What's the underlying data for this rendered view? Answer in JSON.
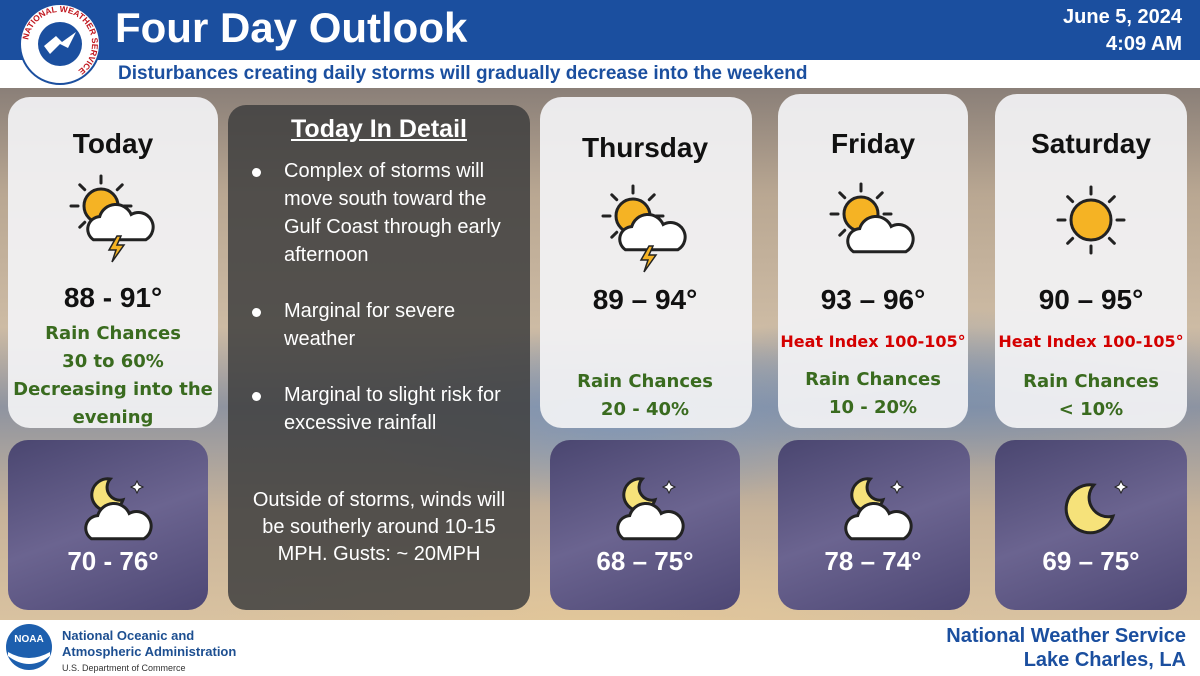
{
  "header": {
    "title": "Four Day Outlook",
    "date": "June 5, 2024",
    "time": "4:09 AM",
    "subtitle": "Disturbances creating daily storms will gradually decrease into the weekend",
    "logo_text": "NATIONAL WEATHER SERVICE"
  },
  "days": [
    {
      "name": "Today",
      "high": "88 - 91°",
      "notes": [
        "Rain Chances",
        "30 to 60%",
        "Decreasing into the evening"
      ],
      "low": "70 - 76°"
    },
    {
      "name": "Thursday",
      "high": "89 – 94°",
      "notes": [
        "Rain Chances",
        "20 - 40%"
      ],
      "low": "68 – 75°"
    },
    {
      "name": "Friday",
      "high": "93 – 96°",
      "heat_index": "Heat Index 100-105°",
      "notes": [
        "Rain Chances",
        "10 - 20%"
      ],
      "low": "78 – 74°"
    },
    {
      "name": "Saturday",
      "high": "90 – 95°",
      "heat_index": "Heat Index 100-105°",
      "notes": [
        "Rain Chances",
        "< 10%"
      ],
      "low": "69 – 75°"
    }
  ],
  "detail": {
    "title": "Today In Detail",
    "bullets": [
      "Complex of storms will move south toward the Gulf Coast through early afternoon",
      "Marginal for severe weather",
      "Marginal to slight risk for excessive rainfall"
    ],
    "note": "Outside of storms, winds will be southerly around 10-15 MPH. Gusts: ~ 20MPH"
  },
  "footer": {
    "noaa_logo": "NOAA",
    "agency": [
      "National Oceanic and",
      "Atmospheric Administration"
    ],
    "department": "U.S. Department of Commerce",
    "office": [
      "National Weather Service",
      "Lake Charles, LA"
    ]
  }
}
